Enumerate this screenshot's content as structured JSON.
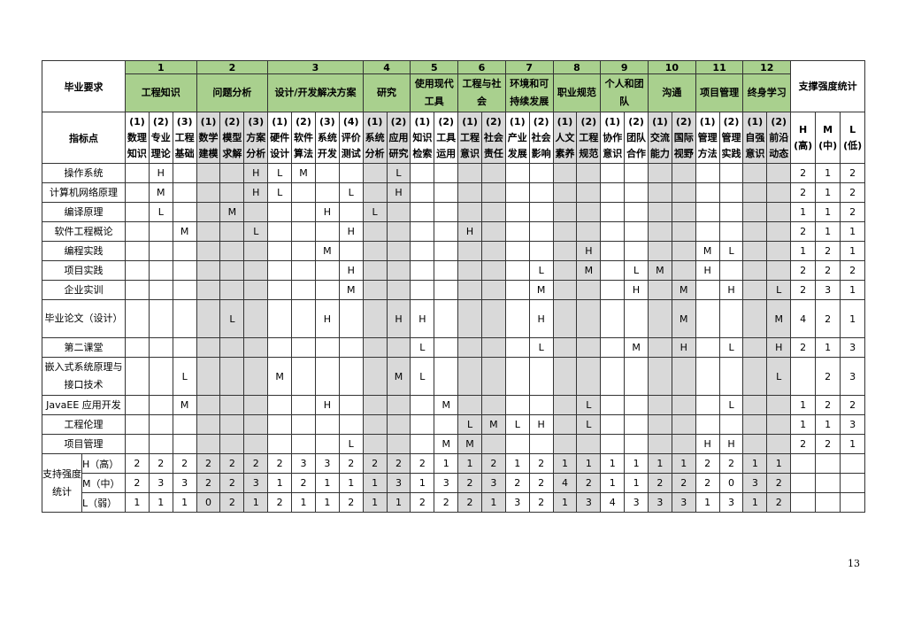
{
  "header": {
    "req_label": "毕业要求",
    "ind_label": "指标点",
    "stat_label": "支撑强度统计",
    "stat_cols": [
      "H (高)",
      "M (中)",
      "L (低)"
    ],
    "groups": [
      {
        "num": "1",
        "name": "工程知识",
        "inds": [
          "(1) 数理知识",
          "(2) 专业理论",
          "(3) 工程基础"
        ]
      },
      {
        "num": "2",
        "name": "问题分析",
        "inds": [
          "(1) 数学建模",
          "(2) 模型求解",
          "(3) 方案分析"
        ]
      },
      {
        "num": "3",
        "name": "设计/开发解决方案",
        "inds": [
          "(1) 硬件设计",
          "(2) 软件算法",
          "(3) 系统开发",
          "(4) 评价测试"
        ]
      },
      {
        "num": "4",
        "name": "研究",
        "inds": [
          "(1) 系统分析",
          "(2) 应用研究"
        ]
      },
      {
        "num": "5",
        "name": "使用现代工具",
        "inds": [
          "(1) 知识检索",
          "(2) 工具运用"
        ]
      },
      {
        "num": "6",
        "name": "工程与社会",
        "inds": [
          "(1) 工程意识",
          "(2) 社会责任"
        ]
      },
      {
        "num": "7",
        "name": "环境和可持续发展",
        "inds": [
          "(1) 产业发展",
          "(2) 社会影响"
        ]
      },
      {
        "num": "8",
        "name": "职业规范",
        "inds": [
          "(1) 人文素养",
          "(2) 工程规范"
        ]
      },
      {
        "num": "9",
        "name": "个人和团队",
        "inds": [
          "(1) 协作意识",
          "(2) 团队合作"
        ]
      },
      {
        "num": "10",
        "name": "沟通",
        "inds": [
          "(1) 交流能力",
          "(2) 国际视野"
        ]
      },
      {
        "num": "11",
        "name": "项目管理",
        "inds": [
          "(1) 管理方法",
          "(2) 管理实践"
        ]
      },
      {
        "num": "12",
        "name": "终身学习",
        "inds": [
          "(1) 自强意识",
          "(2) 前沿动态"
        ]
      }
    ]
  },
  "rows": [
    {
      "course": "操作系统",
      "marks": {
        "1": "H",
        "5": "H",
        "6": "L",
        "7": "M",
        "11": "L"
      },
      "stats": [
        "2",
        "1",
        "2"
      ]
    },
    {
      "course": "计算机网络原理",
      "marks": {
        "1": "M",
        "5": "H",
        "6": "L",
        "9": "L",
        "11": "H"
      },
      "stats": [
        "2",
        "1",
        "2"
      ]
    },
    {
      "course": "编译原理",
      "marks": {
        "1": "L",
        "4": "M",
        "8": "H",
        "10": "L"
      },
      "stats": [
        "1",
        "1",
        "2"
      ]
    },
    {
      "course": "软件工程概论",
      "marks": {
        "2": "M",
        "5": "L",
        "9": "H",
        "14": "H"
      },
      "stats": [
        "2",
        "1",
        "1"
      ]
    },
    {
      "course": "编程实践",
      "marks": {
        "8": "M",
        "19": "H",
        "24": "M",
        "25": "L"
      },
      "stats": [
        "1",
        "2",
        "1"
      ]
    },
    {
      "course": "项目实践",
      "marks": {
        "9": "H",
        "17": "L",
        "19": "M",
        "21": "L",
        "22": "M",
        "24": "H"
      },
      "stats": [
        "2",
        "2",
        "2"
      ]
    },
    {
      "course": "企业实训",
      "marks": {
        "9": "M",
        "17": "M",
        "21": "H",
        "23": "M",
        "25": "H",
        "27": "L"
      },
      "stats": [
        "2",
        "3",
        "1"
      ]
    },
    {
      "course": "毕业论文（设计）",
      "tall": true,
      "marks": {
        "4": "L",
        "8": "H",
        "11": "H",
        "12": "H",
        "17": "H",
        "23": "M",
        "27": "M"
      },
      "stats": [
        "4",
        "2",
        "1"
      ]
    },
    {
      "course": "第二课堂",
      "marks": {
        "12": "L",
        "17": "L",
        "21": "M",
        "23": "H",
        "25": "L",
        "27": "H"
      },
      "stats": [
        "2",
        "1",
        "3"
      ]
    },
    {
      "course": "嵌入式系统原理与接口技术",
      "tall": true,
      "marks": {
        "2": "L",
        "6": "M",
        "11": "M",
        "12": "L",
        "27": "L"
      },
      "stats": [
        "",
        "2",
        "3"
      ]
    },
    {
      "course": "JavaEE 应用开发",
      "marks": {
        "2": "M",
        "8": "H",
        "13": "M",
        "19": "L",
        "25": "L"
      },
      "stats": [
        "1",
        "2",
        "2"
      ]
    },
    {
      "course": "工程伦理",
      "marks": {
        "14": "L",
        "15": "M",
        "16": "L",
        "17": "H",
        "19": "L"
      },
      "stats": [
        "1",
        "1",
        "3"
      ]
    },
    {
      "course": "项目管理",
      "marks": {
        "9": "L",
        "13": "M",
        "14": "M",
        "24": "H",
        "25": "H"
      },
      "stats": [
        "2",
        "2",
        "1"
      ]
    }
  ],
  "summary": {
    "label": "支持强度统计",
    "rows": [
      {
        "label": "H（高）",
        "values": [
          "2",
          "2",
          "2",
          "2",
          "2",
          "2",
          "2",
          "3",
          "3",
          "2",
          "2",
          "2",
          "2",
          "1",
          "1",
          "2",
          "1",
          "2",
          "1",
          "1",
          "1",
          "1",
          "1",
          "1",
          "2",
          "2",
          "1",
          "1"
        ]
      },
      {
        "label": "M（中）",
        "values": [
          "2",
          "3",
          "3",
          "2",
          "2",
          "3",
          "1",
          "2",
          "1",
          "1",
          "1",
          "3",
          "1",
          "3",
          "2",
          "3",
          "2",
          "2",
          "4",
          "2",
          "1",
          "1",
          "2",
          "2",
          "2",
          "0",
          "3",
          "2"
        ]
      },
      {
        "label": "L（弱）",
        "values": [
          "1",
          "1",
          "1",
          "0",
          "2",
          "1",
          "2",
          "1",
          "1",
          "2",
          "1",
          "1",
          "2",
          "2",
          "2",
          "1",
          "3",
          "2",
          "1",
          "3",
          "4",
          "3",
          "3",
          "3",
          "1",
          "3",
          "1",
          "2"
        ]
      }
    ]
  },
  "page_number": "13"
}
